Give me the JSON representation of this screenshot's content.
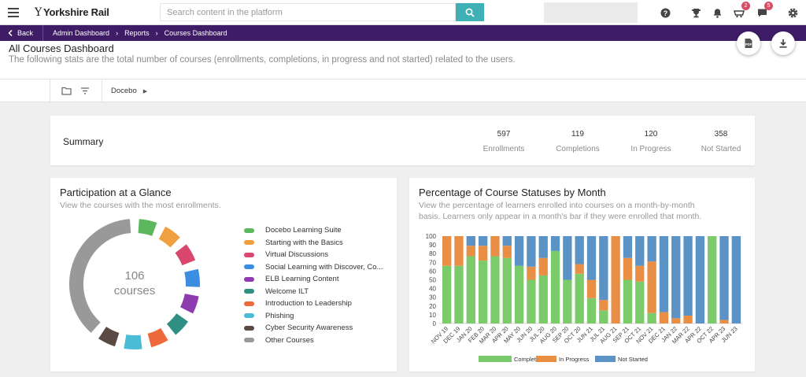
{
  "topbar": {
    "brand": "Yorkshire Rail",
    "search_placeholder": "Search content in the platform",
    "icons": [
      "menu-icon",
      "search-icon",
      "help-icon",
      "trophy-icon",
      "bell-icon",
      "cart-icon",
      "chat-icon",
      "gear-icon"
    ],
    "cart_badge": "2",
    "chat_badge": "5"
  },
  "breadcrumb": {
    "back": "Back",
    "items": [
      "Admin Dashboard",
      "Reports",
      "Courses Dashboard"
    ]
  },
  "header": {
    "title": "All Courses Dashboard",
    "subtitle": "The following stats are the total number of courses (enrollments, completions, in progress and not started) related to the users.",
    "pdf_label": "PDF"
  },
  "filter": {
    "branch": "Docebo"
  },
  "summary": {
    "title": "Summary",
    "stats": [
      {
        "value": "597",
        "label": "Enrollments"
      },
      {
        "value": "119",
        "label": "Completions"
      },
      {
        "value": "120",
        "label": "In Progress"
      },
      {
        "value": "358",
        "label": "Not Started"
      }
    ]
  },
  "participation": {
    "title": "Participation at a Glance",
    "subtitle": "View the courses with the most enrollments.",
    "center_value": "106",
    "center_label": "courses",
    "legend": [
      {
        "label": "Docebo Learning Suite",
        "color": "#5cb85c"
      },
      {
        "label": "Starting with the Basics",
        "color": "#f0a040"
      },
      {
        "label": "Virtual Discussions",
        "color": "#d9466e"
      },
      {
        "label": "Social Learning with Discover, Co...",
        "color": "#3c8fe0"
      },
      {
        "label": "ELB Learning Content",
        "color": "#8e3bb0"
      },
      {
        "label": "Welcome ILT",
        "color": "#2f8f83"
      },
      {
        "label": "Introduction to Leadership",
        "color": "#ef6a3a"
      },
      {
        "label": "Phishing",
        "color": "#4bbcd6"
      },
      {
        "label": "Cyber Security Awareness",
        "color": "#5b4a44"
      },
      {
        "label": "Other Courses",
        "color": "#999999"
      }
    ]
  },
  "statuses": {
    "title": "Percentage of Course Statuses by Month",
    "subtitle_line1": "View the percentage of learners enrolled into courses on a month-by-month",
    "subtitle_line2": "basis. Learners only appear in a month's bar if they were enrolled that month."
  },
  "chart_data": {
    "type": "bar",
    "stacked": true,
    "categories": [
      "NOV 19",
      "DEC 19",
      "JAN 20",
      "FEB 20",
      "MAR 20",
      "APR 20",
      "MAY 20",
      "JUN 20",
      "JUL 20",
      "AUG 20",
      "SEP 20",
      "OCT 20",
      "JUN 21",
      "JUL 21",
      "AUG 21",
      "SEP 21",
      "OCT 21",
      "NOV 21",
      "DEC 21",
      "JAN 22",
      "MAR 22",
      "APR 22",
      "OCT 22",
      "APR 23",
      "JUN 23"
    ],
    "series": [
      {
        "name": "Completed",
        "color": "#7ccb6a",
        "values": [
          66,
          66,
          77,
          72,
          77,
          75,
          66,
          50,
          55,
          83,
          50,
          57,
          29,
          15,
          0,
          50,
          48,
          12,
          0,
          0,
          0,
          0,
          100,
          0,
          0
        ]
      },
      {
        "name": "In Progress",
        "color": "#e88f45",
        "values": [
          34,
          34,
          12,
          17,
          23,
          14,
          0,
          15,
          20,
          0,
          0,
          11,
          21,
          12,
          100,
          25,
          18,
          59,
          13,
          6,
          9,
          0,
          0,
          4,
          0
        ]
      },
      {
        "name": "Not Started",
        "color": "#5b93c7",
        "values": [
          0,
          0,
          11,
          11,
          0,
          11,
          34,
          35,
          25,
          17,
          50,
          32,
          50,
          73,
          0,
          25,
          34,
          29,
          87,
          94,
          91,
          100,
          0,
          96,
          100
        ]
      }
    ],
    "ylim": [
      0,
      100
    ],
    "yticks": [
      0,
      10,
      20,
      30,
      40,
      50,
      60,
      70,
      80,
      90,
      100
    ],
    "legend_position": "bottom"
  },
  "donut_data": {
    "type": "pie",
    "segments": [
      "#5cb85c",
      "#f0a040",
      "#d9466e",
      "#3c8fe0",
      "#8e3bb0",
      "#2f8f83",
      "#ef6a3a",
      "#4bbcd6",
      "#5b4a44",
      "#999999"
    ]
  }
}
